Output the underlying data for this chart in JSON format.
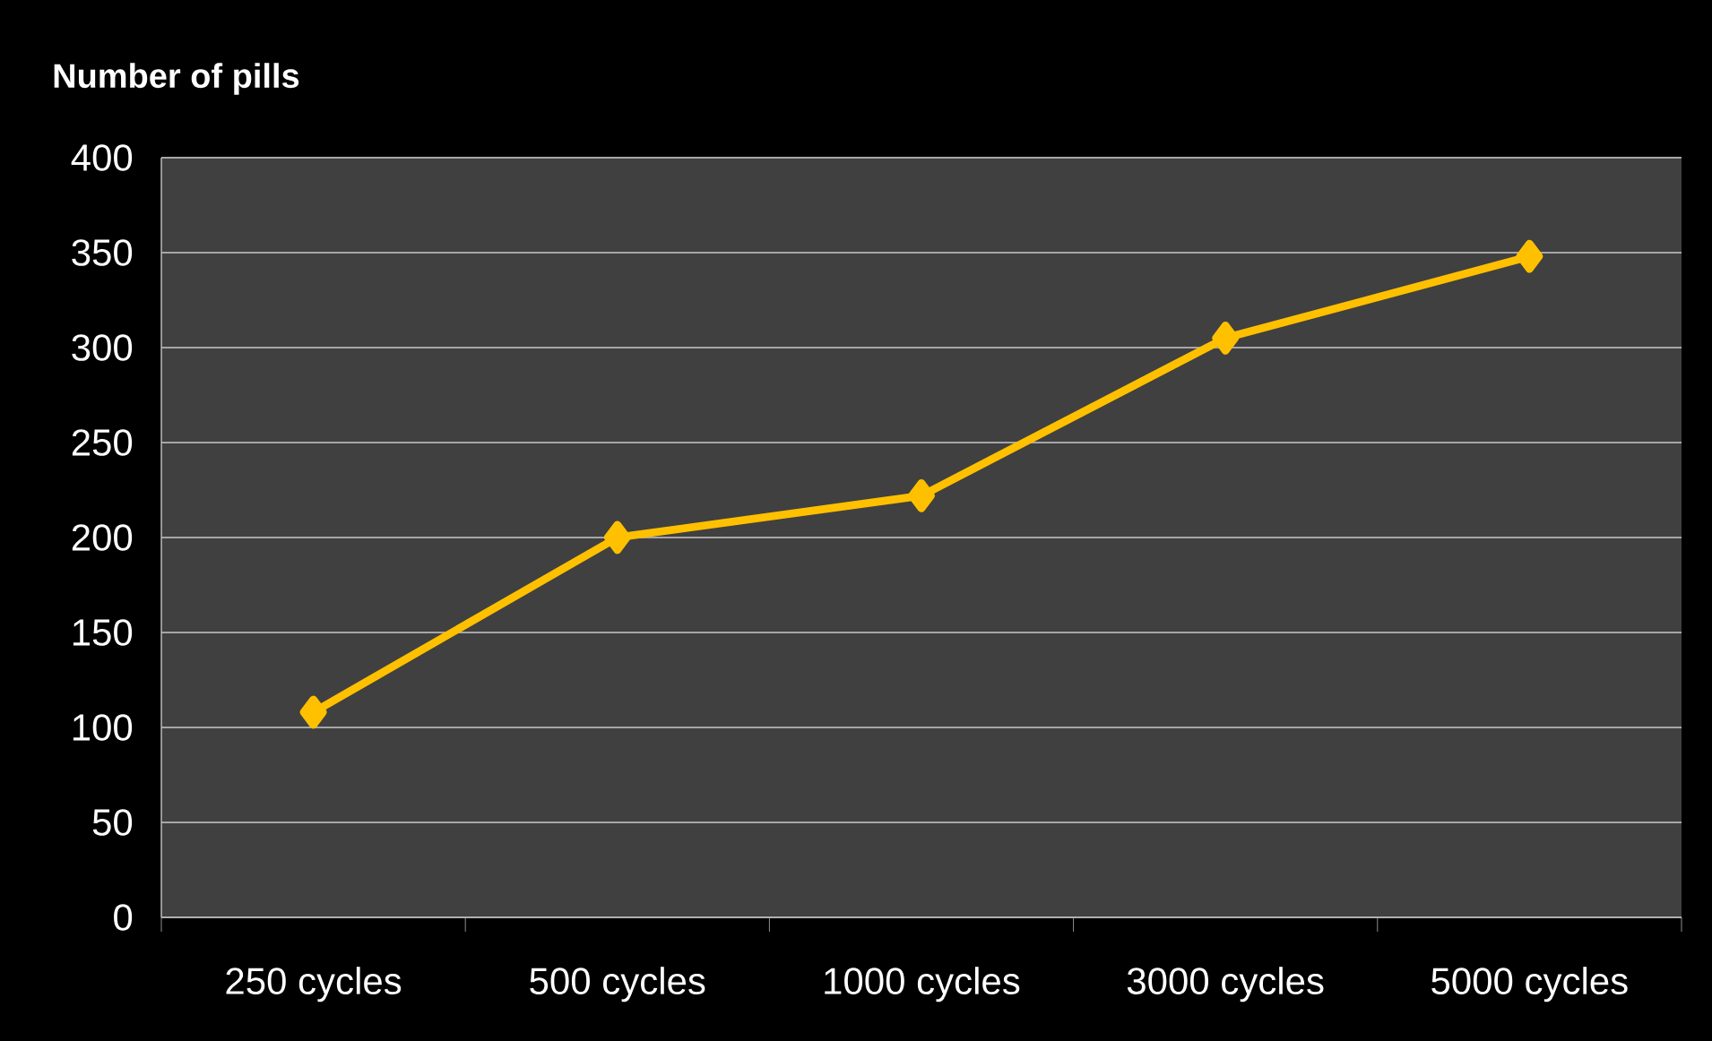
{
  "chart_data": {
    "type": "line",
    "ylabel": "Number of pills",
    "categories": [
      "250 cycles",
      "500 cycles",
      "1000 cycles",
      "3000 cycles",
      "5000 cycles"
    ],
    "series": [
      {
        "color": "#ffc000",
        "values": [
          108,
          200,
          222,
          305,
          348
        ]
      }
    ],
    "ylim": [
      0,
      400
    ],
    "yticks": [
      0,
      50,
      100,
      150,
      200,
      250,
      300,
      350,
      400
    ],
    "grid": "y",
    "marker": "diamond",
    "line_style": "solid"
  }
}
